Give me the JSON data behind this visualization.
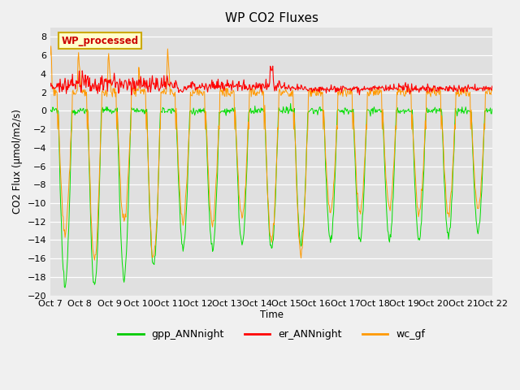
{
  "title": "WP CO2 Fluxes",
  "ylabel": "CO2 Flux (μmol/m2/s)",
  "xlabel": "Time",
  "ylim": [
    -20,
    9
  ],
  "yticks": [
    -20,
    -18,
    -16,
    -14,
    -12,
    -10,
    -8,
    -6,
    -4,
    -2,
    0,
    2,
    4,
    6,
    8
  ],
  "xtick_labels": [
    "Oct 7",
    "Oct 8",
    "Oct 9",
    "Oct 10",
    "Oct 11",
    "Oct 12",
    "Oct 13",
    "Oct 14",
    "Oct 15",
    "Oct 16",
    "Oct 17",
    "Oct 18",
    "Oct 19",
    "Oct 20",
    "Oct 21",
    "Oct 22"
  ],
  "legend_entries": [
    "gpp_ANNnight",
    "er_ANNnight",
    "wc_gf"
  ],
  "legend_colors": [
    "#00cc00",
    "#ff0000",
    "#ff9900"
  ],
  "watermark_text": "WP_processed",
  "watermark_color": "#cc0000",
  "watermark_bg": "#ffffcc",
  "watermark_edge": "#ccaa00",
  "fig_bg_color": "#f0f0f0",
  "plot_bg_color": "#e0e0e0",
  "gpp_color": "#00dd00",
  "er_color": "#ff0000",
  "wc_color": "#ff9900",
  "title_fontsize": 11,
  "num_days": 15,
  "points_per_day": 48,
  "figsize": [
    6.4,
    4.8
  ],
  "dpi": 100
}
